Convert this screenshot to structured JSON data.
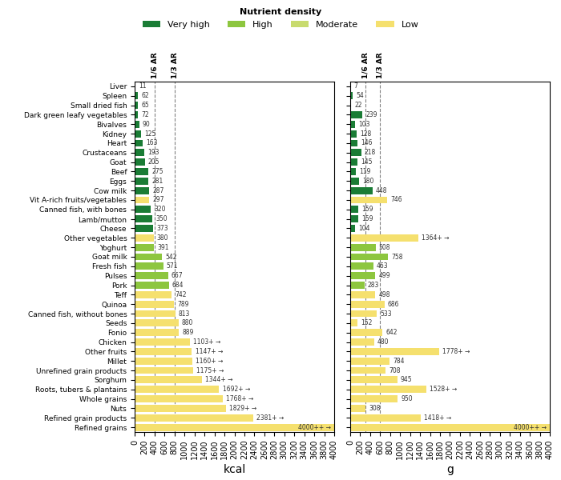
{
  "chart_data": [
    {
      "type": "bar",
      "orientation": "horizontal",
      "categories": [
        "Liver",
        "Spleen",
        "Small dried fish",
        "Dark green leafy vegetables",
        "Bivalves",
        "Kidney",
        "Heart",
        "Crustaceans",
        "Goat",
        "Beef",
        "Eggs",
        "Cow milk",
        "Vit A-rich fruits/vegetables",
        "Canned fish, with bones",
        "Lamb/mutton",
        "Cheese",
        "Other vegetables",
        "Yoghurt",
        "Goat milk",
        "Fresh fish",
        "Pulses",
        "Pork",
        "Teff",
        "Quinoa",
        "Canned fish, without bones",
        "Seeds",
        "Fonio",
        "Chicken",
        "Other fruits",
        "Millet",
        "Unrefined grain products",
        "Sorghum",
        "Roots, tubers & plantains",
        "Whole grains",
        "Nuts",
        "Refined grain products",
        "Refined grains"
      ],
      "values": [
        11,
        62,
        65,
        72,
        90,
        125,
        163,
        193,
        205,
        275,
        281,
        287,
        297,
        320,
        350,
        373,
        380,
        391,
        542,
        571,
        667,
        684,
        742,
        789,
        813,
        880,
        889,
        1103,
        1147,
        1160,
        1175,
        1344,
        1692,
        1768,
        1829,
        2381,
        4000
      ],
      "value_labels": [
        "11",
        "62",
        "65",
        "72",
        "90",
        "125",
        "163",
        "193",
        "205",
        "275",
        "281",
        "287",
        "297",
        "320",
        "350",
        "373",
        "380",
        "391",
        "542",
        "571",
        "667",
        "684",
        "742",
        "789",
        "813",
        "880",
        "889",
        "1103+ →",
        "1147+ →",
        "1160+ →",
        "1175+ →",
        "1344+ →",
        "1692+ →",
        "1768+ →",
        "1829+ →",
        "2381+ →",
        "4000++ →"
      ],
      "data_labels": true,
      "colors": [
        "#1a7c35",
        "#1a7c35",
        "#1a7c35",
        "#1a7c35",
        "#1a7c35",
        "#1a7c35",
        "#1a7c35",
        "#1a7c35",
        "#1a7c35",
        "#1a7c35",
        "#1a7c35",
        "#1a7c35",
        "#f5e06e",
        "#1a7c35",
        "#1a7c35",
        "#1a7c35",
        "#f5e06e",
        "#8dc63f",
        "#8dc63f",
        "#8dc63f",
        "#8dc63f",
        "#8dc63f",
        "#f5e06e",
        "#f5e06e",
        "#f5e06e",
        "#f5e06e",
        "#f5e06e",
        "#f5e06e",
        "#f5e06e",
        "#f5e06e",
        "#f5e06e",
        "#f5e06e",
        "#f5e06e",
        "#f5e06e",
        "#f5e06e",
        "#f5e06e",
        "#f5e06e"
      ],
      "x_label": "kcal",
      "xlim": [
        0,
        4000
      ],
      "xticks": [
        0,
        200,
        400,
        600,
        800,
        1000,
        1200,
        1400,
        1600,
        1800,
        2000,
        2200,
        2400,
        2600,
        2800,
        3000,
        3200,
        3400,
        3600,
        3800,
        4000
      ],
      "reference_lines": [
        {
          "x": 400,
          "label": "1/6 AR"
        },
        {
          "x": 800,
          "label": "1/3 AR"
        }
      ],
      "legend": "upper center",
      "legend_title": "Nutrient density",
      "legend_entries": [
        {
          "name": "Very high",
          "color": "#1a7c35"
        },
        {
          "name": "High",
          "color": "#8dc63f"
        },
        {
          "name": "Moderate",
          "color": "#c8db6e"
        },
        {
          "name": "Low",
          "color": "#f5e06e"
        }
      ]
    },
    {
      "type": "bar",
      "orientation": "horizontal",
      "tick_labels": "x",
      "categories": [
        "Liver",
        "Spleen",
        "Small dried fish",
        "Dark green leafy vegetables",
        "Bivalves",
        "Kidney",
        "Heart",
        "Crustaceans",
        "Goat",
        "Beef",
        "Eggs",
        "Cow milk",
        "Vit A-rich fruits/vegetables",
        "Canned fish, with bones",
        "Lamb/mutton",
        "Cheese",
        "Other vegetables",
        "Yoghurt",
        "Goat milk",
        "Fresh fish",
        "Pulses",
        "Pork",
        "Teff",
        "Quinoa",
        "Canned fish, without bones",
        "Seeds",
        "Fonio",
        "Chicken",
        "Other fruits",
        "Millet",
        "Unrefined grain products",
        "Sorghum",
        "Roots, tubers & plantains",
        "Whole grains",
        "Nuts",
        "Refined grain products",
        "Refined grains"
      ],
      "values": [
        7,
        54,
        22,
        239,
        103,
        128,
        146,
        218,
        145,
        119,
        180,
        448,
        746,
        159,
        159,
        104,
        1364,
        508,
        758,
        463,
        499,
        283,
        498,
        686,
        533,
        152,
        642,
        480,
        1778,
        784,
        708,
        945,
        1528,
        950,
        308,
        1418,
        4000
      ],
      "value_labels": [
        "7",
        "54",
        "22",
        "239",
        "103",
        "128",
        "146",
        "218",
        "145",
        "119",
        "180",
        "448",
        "746",
        "159",
        "159",
        "104",
        "1364+ →",
        "508",
        "758",
        "463",
        "499",
        "283",
        "498",
        "686",
        "533",
        "152",
        "642",
        "480",
        "1778+ →",
        "784",
        "708",
        "945",
        "1528+ →",
        "950",
        "308",
        "1418+ →",
        "4000++ →"
      ],
      "data_labels": true,
      "colors": [
        "#1a7c35",
        "#1a7c35",
        "#1a7c35",
        "#1a7c35",
        "#1a7c35",
        "#1a7c35",
        "#1a7c35",
        "#1a7c35",
        "#1a7c35",
        "#1a7c35",
        "#1a7c35",
        "#1a7c35",
        "#f5e06e",
        "#1a7c35",
        "#1a7c35",
        "#1a7c35",
        "#f5e06e",
        "#8dc63f",
        "#8dc63f",
        "#8dc63f",
        "#8dc63f",
        "#8dc63f",
        "#f5e06e",
        "#f5e06e",
        "#f5e06e",
        "#f5e06e",
        "#f5e06e",
        "#f5e06e",
        "#f5e06e",
        "#f5e06e",
        "#f5e06e",
        "#f5e06e",
        "#f5e06e",
        "#f5e06e",
        "#f5e06e",
        "#f5e06e",
        "#f5e06e"
      ],
      "x_label": "g",
      "xlim": [
        0,
        4000
      ],
      "xticks": [
        0,
        200,
        400,
        600,
        800,
        1000,
        1200,
        1400,
        1600,
        1800,
        2000,
        2200,
        2400,
        2600,
        2800,
        3000,
        3200,
        3400,
        3600,
        3800,
        4000
      ],
      "reference_lines": [
        {
          "x": 300,
          "label": "1/6 AR"
        },
        {
          "x": 600,
          "label": "1/3 AR"
        }
      ]
    }
  ]
}
